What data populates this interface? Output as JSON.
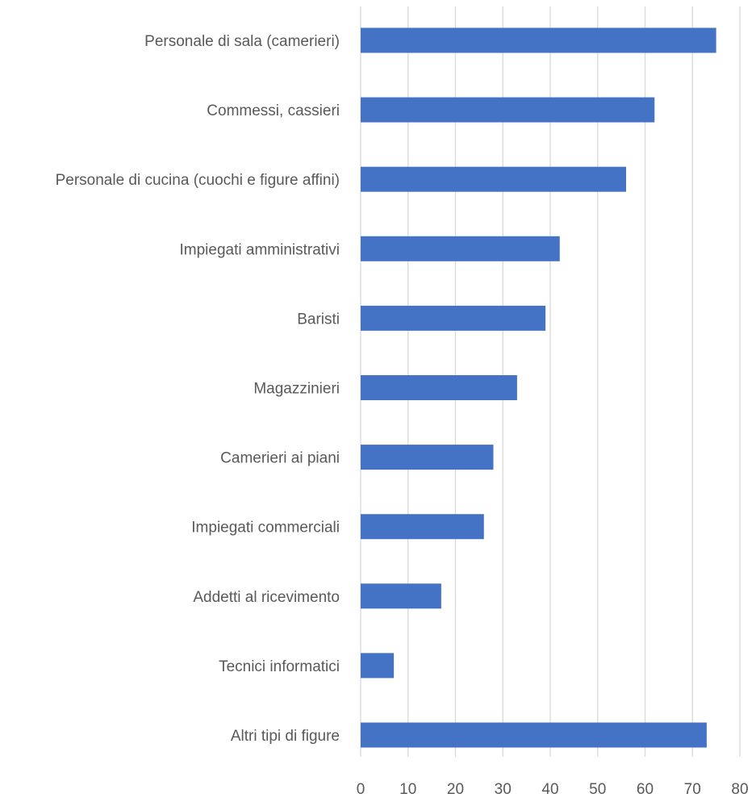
{
  "chart_data": {
    "type": "bar",
    "orientation": "horizontal",
    "categories": [
      "Personale di sala (camerieri)",
      "Commessi, cassieri",
      "Personale di cucina (cuochi e figure affini)",
      "Impiegati amministrativi",
      "Baristi",
      "Magazzinieri",
      "Camerieri ai piani",
      "Impiegati commerciali",
      "Addetti al ricevimento",
      "Tecnici informatici",
      "Altri tipi di figure"
    ],
    "values": [
      75,
      62,
      56,
      42,
      39,
      33,
      28,
      26,
      17,
      7,
      73
    ],
    "xlim": [
      0,
      80
    ],
    "xticks": [
      "0",
      "10",
      "20",
      "30",
      "40",
      "50",
      "60",
      "70",
      "80"
    ],
    "bar_color": "#4472C4",
    "grid": true,
    "legend": "none",
    "title": "",
    "xlabel": "",
    "ylabel": ""
  }
}
